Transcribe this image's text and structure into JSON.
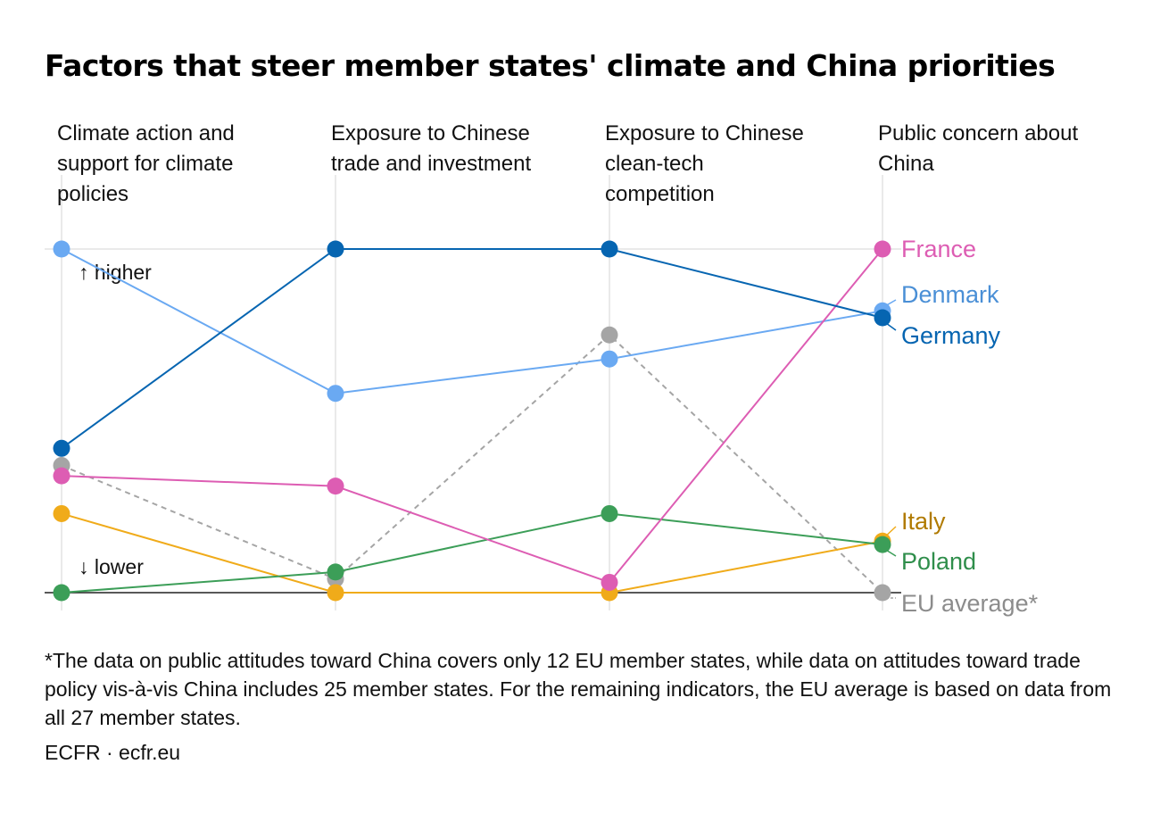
{
  "chart_data": {
    "type": "line",
    "title": "Factors that steer member states' climate and China priorities",
    "categories": [
      [
        "Climate action and",
        "support for climate",
        "policies"
      ],
      [
        "Exposure to Chinese",
        "trade and investment"
      ],
      [
        "Exposure to Chinese",
        "clean-tech",
        "competition"
      ],
      [
        "Public concern about",
        "China"
      ]
    ],
    "ylim": [
      0,
      1
    ],
    "y_annotations": {
      "higher": "↑ higher",
      "lower": "↓ lower"
    },
    "grid": true,
    "legend": "direct labels at right",
    "series": [
      {
        "name": "France",
        "values": [
          0.34,
          0.31,
          0.03,
          1.0
        ],
        "color": "#dd5db3",
        "label_color": "#dd5db3",
        "dashed": false
      },
      {
        "name": "Denmark",
        "values": [
          1.0,
          0.58,
          0.68,
          0.82
        ],
        "color": "#6aa9f2",
        "label_color": "#4a8fd6",
        "dashed": false
      },
      {
        "name": "Germany",
        "values": [
          0.42,
          1.0,
          1.0,
          0.8
        ],
        "color": "#0665b1",
        "label_color": "#0665b1",
        "dashed": false
      },
      {
        "name": "Italy",
        "values": [
          0.23,
          0.0,
          0.0,
          0.15
        ],
        "color": "#f0ab1a",
        "label_color": "#b07a00",
        "dashed": false
      },
      {
        "name": "Poland",
        "values": [
          0.0,
          0.06,
          0.23,
          0.14
        ],
        "color": "#3c9e58",
        "label_color": "#2f8e4b",
        "dashed": false
      },
      {
        "name": "EU average*",
        "values": [
          0.37,
          0.04,
          0.75,
          0.0
        ],
        "color": "#a5a5a5",
        "label_color": "#8c8c8c",
        "dashed": true
      }
    ]
  },
  "footnote": "*The data on public attitudes toward China covers only 12 EU member states, while data on attitudes toward trade policy vis-à-vis China includes 25 member states. For the remaining indicators, the EU average is based on data from all 27 member states.",
  "source": "ECFR · ecfr.eu"
}
